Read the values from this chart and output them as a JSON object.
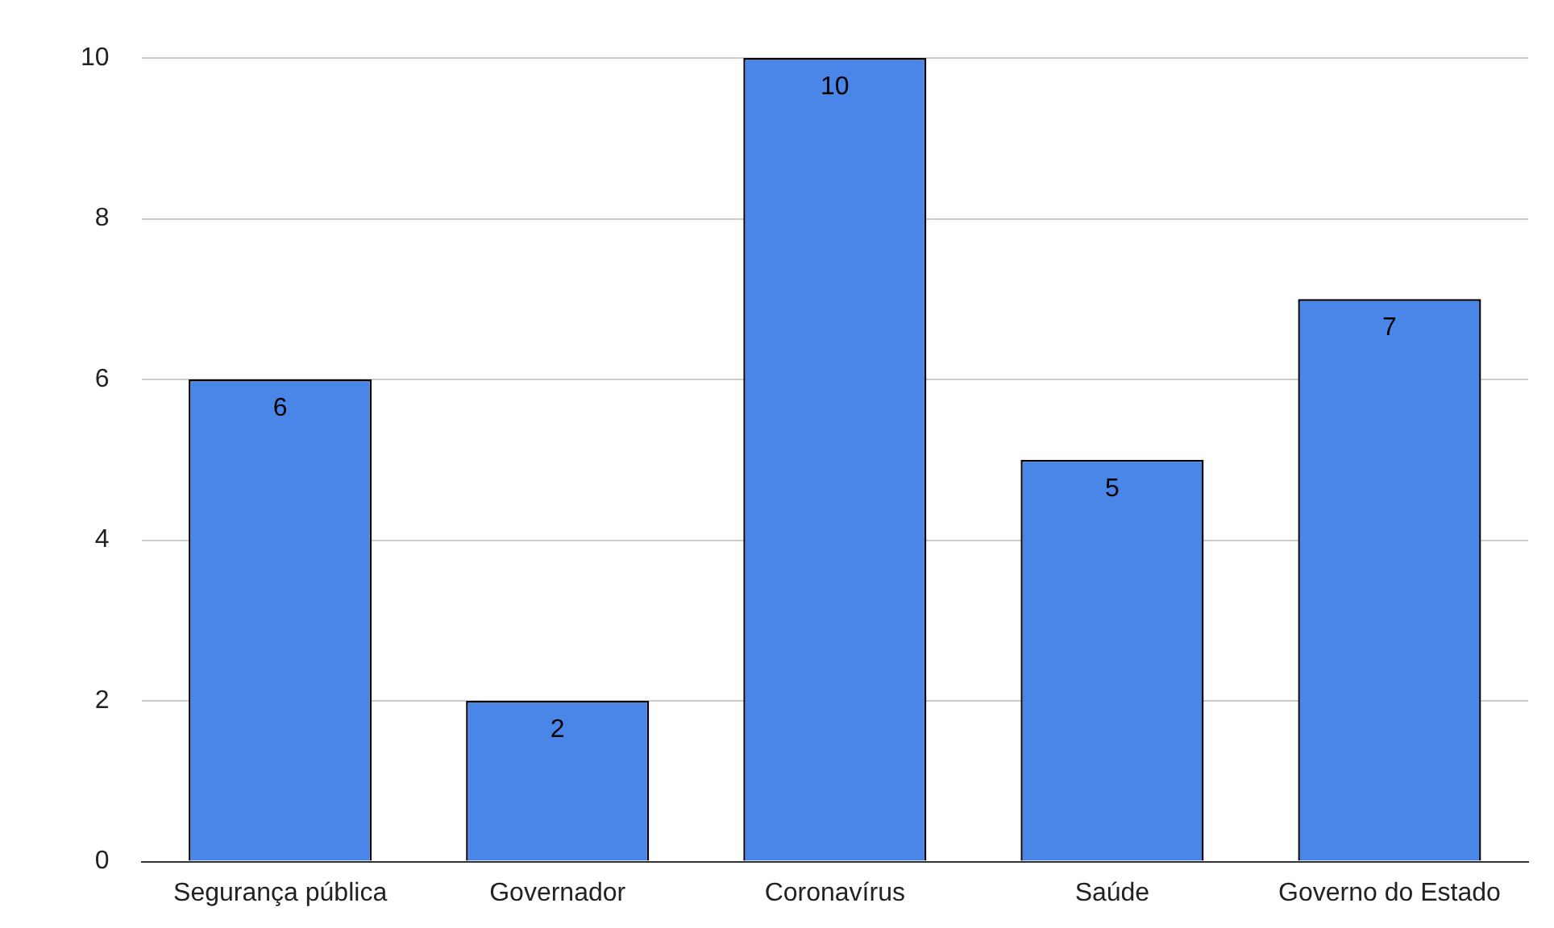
{
  "chart_data": {
    "type": "bar",
    "categories": [
      "Segurança pública",
      "Governador",
      "Coronavírus",
      "Saúde",
      "Governo do Estado"
    ],
    "values": [
      6,
      2,
      10,
      5,
      7
    ],
    "color": "#4a86e8",
    "ylim": [
      0,
      10
    ],
    "yticks": [
      0,
      2,
      4,
      6,
      8,
      10
    ],
    "grid": "y",
    "data_labels": true,
    "legend": false
  }
}
